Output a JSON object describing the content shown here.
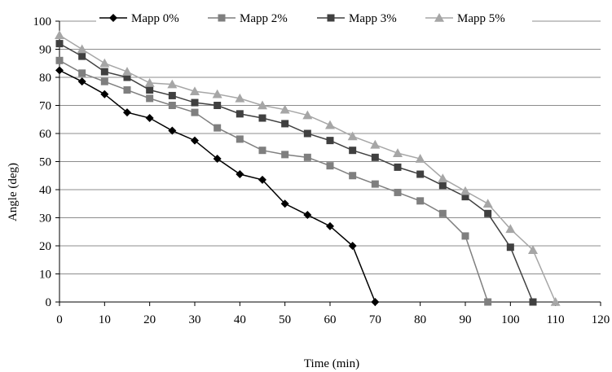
{
  "chart_data": {
    "type": "line",
    "title": "",
    "xlabel": "Time (min)",
    "ylabel": "Angle (deg)",
    "xlim": [
      0,
      120
    ],
    "ylim": [
      0,
      100
    ],
    "xticks": [
      0,
      10,
      20,
      30,
      40,
      50,
      60,
      70,
      80,
      90,
      100,
      110,
      120
    ],
    "yticks": [
      0,
      10,
      20,
      30,
      40,
      50,
      60,
      70,
      80,
      90,
      100
    ],
    "grid": "horizontal",
    "legend_position": "top",
    "series": [
      {
        "name": "Mapp 0%",
        "color": "#000000",
        "marker": "diamond",
        "x": [
          0,
          5,
          10,
          15,
          20,
          25,
          30,
          35,
          40,
          45,
          50,
          55,
          60,
          65,
          70
        ],
        "y": [
          82.5,
          78.5,
          74,
          67.5,
          65.5,
          61,
          57.5,
          51,
          45.5,
          43.5,
          35,
          31,
          27,
          20,
          0
        ]
      },
      {
        "name": "Mapp 2%",
        "color": "#7f7f7f",
        "marker": "square",
        "x": [
          0,
          5,
          10,
          15,
          20,
          25,
          30,
          35,
          40,
          45,
          50,
          55,
          60,
          65,
          70,
          75,
          80,
          85,
          90,
          95
        ],
        "y": [
          86,
          81.5,
          78.5,
          75.5,
          72.5,
          70,
          67.5,
          62,
          58,
          54,
          52.5,
          51.5,
          48.5,
          45,
          42,
          39,
          36,
          31.5,
          23.5,
          0
        ]
      },
      {
        "name": "Mapp 3%",
        "color": "#404040",
        "marker": "square",
        "x": [
          0,
          5,
          10,
          15,
          20,
          25,
          30,
          35,
          40,
          45,
          50,
          55,
          60,
          65,
          70,
          75,
          80,
          85,
          90,
          95,
          100,
          105
        ],
        "y": [
          92,
          87.5,
          82,
          80,
          75.5,
          73.5,
          71,
          70,
          67,
          65.5,
          63.5,
          60,
          57.5,
          54,
          51.5,
          48,
          45.5,
          41.5,
          37.5,
          31.5,
          19.5,
          0
        ]
      },
      {
        "name": "Mapp 5%",
        "color": "#a6a6a6",
        "marker": "triangle",
        "x": [
          0,
          5,
          10,
          15,
          20,
          25,
          30,
          35,
          40,
          45,
          50,
          55,
          60,
          65,
          70,
          75,
          80,
          85,
          90,
          95,
          100,
          105,
          110
        ],
        "y": [
          95,
          90,
          85,
          82,
          78,
          77.5,
          75,
          74,
          72.5,
          70,
          68.5,
          66.5,
          63,
          59,
          56,
          53,
          51,
          44,
          39.5,
          35,
          26,
          18.5,
          0
        ]
      }
    ]
  }
}
